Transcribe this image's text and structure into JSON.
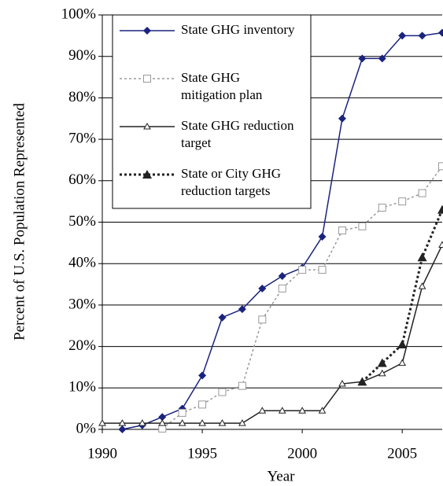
{
  "chart_data": {
    "type": "line",
    "x_label": "Year",
    "y_label": "Percent of U.S. Population Represented",
    "x": [
      1990,
      1991,
      1992,
      1993,
      1994,
      1995,
      1996,
      1997,
      1998,
      1999,
      2000,
      2001,
      2002,
      2003,
      2004,
      2005,
      2006,
      2007
    ],
    "series": [
      {
        "name": "State GHG inventory",
        "color": "#1a237e",
        "marker": "diamond",
        "dash": "none",
        "values": [
          null,
          0,
          1,
          3,
          5,
          13,
          27,
          29,
          34,
          37,
          39,
          46.5,
          75,
          89.5,
          89.5,
          95,
          95,
          95.7
        ]
      },
      {
        "name": "State GHG mitigation plan",
        "color": "#999999",
        "marker": "square",
        "dash": "dotted",
        "values": [
          null,
          null,
          null,
          0.2,
          4,
          6,
          9,
          10.5,
          26.5,
          34,
          38.5,
          38.5,
          48,
          49,
          53.5,
          55,
          57,
          63.5
        ]
      },
      {
        "name": "State GHG reduction target",
        "color": "#222222",
        "marker": "triangle-open",
        "dash": "none",
        "values": [
          1.5,
          1.5,
          1.5,
          1.5,
          1.5,
          1.5,
          1.5,
          1.5,
          4.5,
          4.5,
          4.5,
          4.5,
          11,
          11.5,
          13.5,
          16,
          34.5,
          44.5
        ]
      },
      {
        "name": "State or City GHG reduction targets",
        "color": "#222222",
        "marker": "triangle-filled",
        "dash": "dotted-thick",
        "values": [
          null,
          null,
          null,
          null,
          null,
          null,
          null,
          null,
          null,
          null,
          null,
          null,
          null,
          11.5,
          16,
          20.5,
          41.5,
          53
        ]
      }
    ],
    "xlim": [
      1990,
      2007
    ],
    "xticks": [
      1990,
      1995,
      2000,
      2005
    ],
    "ylim": [
      0,
      100
    ],
    "yticks": [
      {
        "value": 0,
        "label": "0%"
      },
      {
        "value": 10,
        "label": "10%"
      },
      {
        "value": 20,
        "label": "20%"
      },
      {
        "value": 30,
        "label": "30%"
      },
      {
        "value": 40,
        "label": "40%"
      },
      {
        "value": 50,
        "label": "50%"
      },
      {
        "value": 60,
        "label": "60%"
      },
      {
        "value": 70,
        "label": "70%"
      },
      {
        "value": 80,
        "label": "80%"
      },
      {
        "value": 90,
        "label": "90%"
      },
      {
        "value": 100,
        "label": "100%"
      }
    ],
    "grid": true,
    "legend": "upper-left"
  }
}
